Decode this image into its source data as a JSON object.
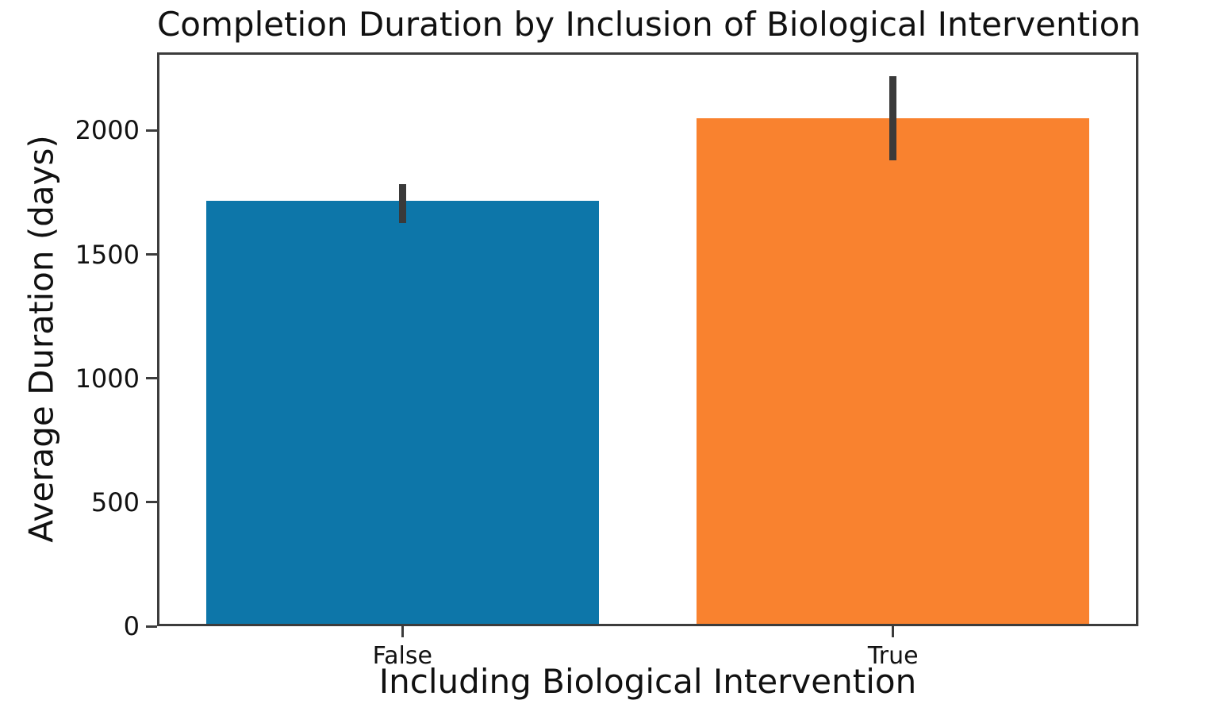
{
  "chart_data": {
    "type": "bar",
    "title": "Completion Duration by Inclusion of Biological Intervention",
    "xlabel": "Including Biological Intervention",
    "ylabel": "Average Duration (days)",
    "categories": [
      "False",
      "True"
    ],
    "values": [
      1715,
      2050
    ],
    "error_bars": [
      [
        1625,
        1785
      ],
      [
        1880,
        2220
      ]
    ],
    "yticks": [
      0,
      500,
      1000,
      1500,
      2000
    ],
    "ylim": [
      0,
      2315
    ],
    "grid": false,
    "legend": null,
    "bar_width_fraction": 0.8,
    "colors": {
      "bars": [
        "#0d76a9",
        "#f9822f"
      ],
      "error": "#3a3a3a",
      "axis": "#3c3c3c",
      "text": "#111111",
      "background": "#ffffff"
    }
  }
}
